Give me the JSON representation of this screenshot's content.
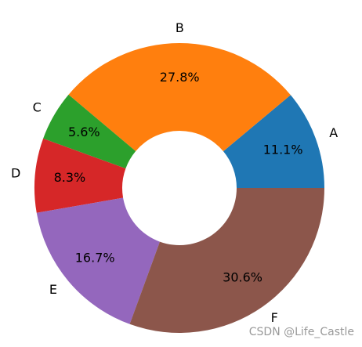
{
  "chart_data": {
    "type": "donut",
    "categories": [
      "A",
      "B",
      "C",
      "D",
      "E",
      "F"
    ],
    "values": [
      11.1,
      27.8,
      5.6,
      8.3,
      16.7,
      30.6
    ],
    "value_labels": [
      "11.1%",
      "27.8%",
      "5.6%",
      "8.3%",
      "16.7%",
      "30.6%"
    ],
    "colors": [
      "#1f77b4",
      "#ff7f0e",
      "#2ca02c",
      "#d62728",
      "#9467bd",
      "#8c564b"
    ],
    "start_angle": 0,
    "counterclockwise": true
  },
  "watermark": "CSDN @Life_Castle"
}
